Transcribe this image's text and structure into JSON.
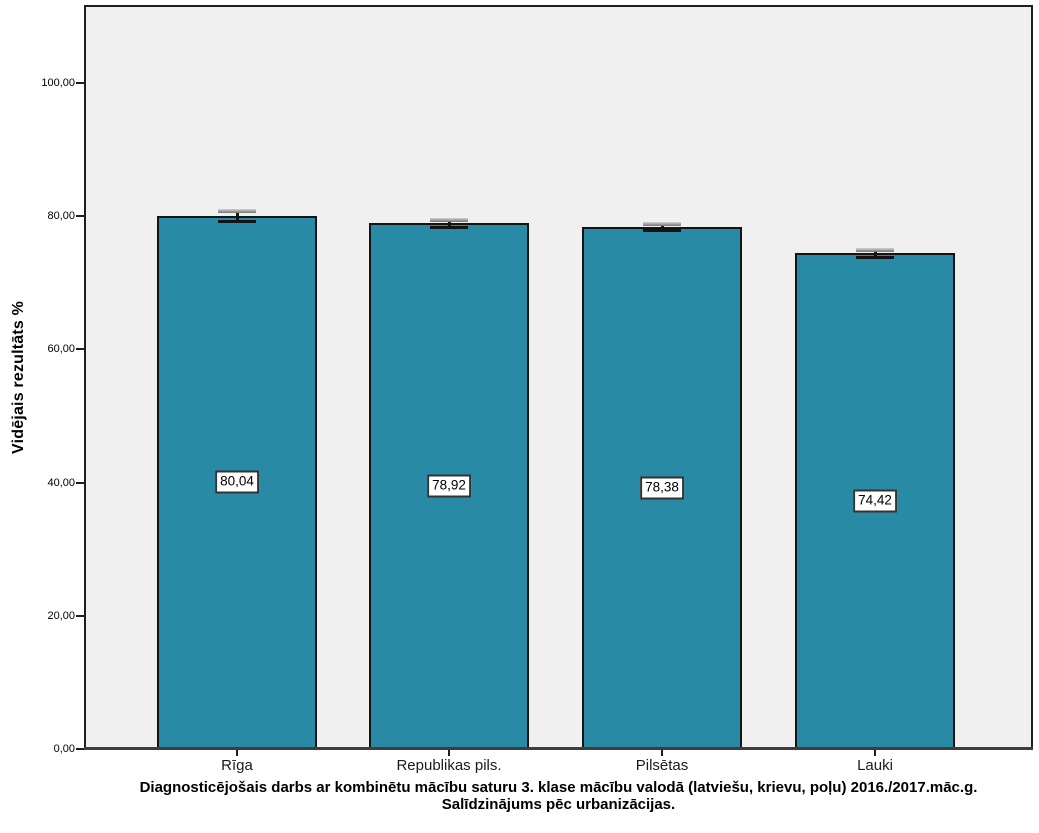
{
  "chart_data": {
    "type": "bar",
    "title": "Diagnosticējošais darbs ar kombinētu mācību saturu 3. klase mācību valodā (latviešu, krievu, poļu) 2016./2017.māc.g.",
    "title_line2": "Salīdzinājums pēc urbanizācijas.",
    "ylabel": "Vidējais rezultāts %",
    "xlabel": "",
    "categories": [
      "Rīga",
      "Republikas pils.",
      "Pilsētas",
      "Lauki"
    ],
    "values": [
      80.04,
      78.92,
      78.38,
      74.42
    ],
    "value_labels": [
      "80,04",
      "78,92",
      "78,38",
      "74,42"
    ],
    "errors": [
      0.8,
      0.5,
      0.5,
      0.5
    ],
    "yticks": [
      0,
      20,
      40,
      60,
      80,
      100
    ],
    "ytick_labels": [
      "0,00",
      "20,00",
      "40,00",
      "60,00",
      "80,00",
      "100,00"
    ],
    "ylim": [
      0,
      112
    ],
    "grid": false,
    "legend": "none",
    "style": {
      "bar_fill": "#298aa5",
      "bar_border": "#141414",
      "plot_background": "#f0f0f0",
      "figure_background": "#ffffff",
      "axis_line": "#3d3d3d",
      "text_color": "#000000"
    }
  }
}
